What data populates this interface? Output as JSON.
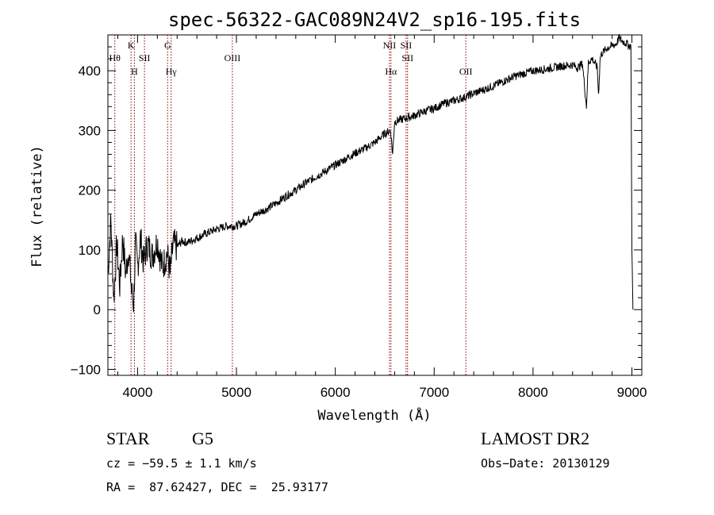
{
  "chart_data": {
    "type": "line",
    "title": "spec-56322-GAC089N24V2_sp16-195.fits",
    "xlabel": "Wavelength (Å)",
    "ylabel": "Flux (relative)",
    "xlim": [
      3700,
      9100
    ],
    "ylim": [
      -110,
      460
    ],
    "x_ticks": [
      4000,
      5000,
      6000,
      7000,
      8000,
      9000
    ],
    "y_ticks": [
      -100,
      0,
      100,
      200,
      300,
      400
    ],
    "x_tick_labels": [
      "4000",
      "5000",
      "6000",
      "7000",
      "8000",
      "9000"
    ],
    "y_tick_labels": [
      "−100",
      "0",
      "100",
      "200",
      "300",
      "400"
    ],
    "grid": false,
    "series": [
      {
        "x": [
          3700,
          3730,
          3760,
          3790,
          3820,
          3850,
          3880,
          3910,
          3940,
          3960,
          3980,
          4000,
          4030,
          4060,
          4100,
          4150,
          4200,
          4250,
          4300,
          4330,
          4360,
          4400,
          4450,
          4500,
          4600,
          4700,
          4800,
          4900,
          5000,
          5100,
          5200,
          5300,
          5400,
          5500,
          5600,
          5700,
          5800,
          5900,
          6000,
          6100,
          6200,
          6300,
          6400,
          6500,
          6560,
          6580,
          6600,
          6700,
          6800,
          6900,
          7000,
          7100,
          7200,
          7300,
          7400,
          7500,
          7600,
          7700,
          7800,
          7900,
          8000,
          8100,
          8200,
          8300,
          8400,
          8450,
          8500,
          8540,
          8560,
          8600,
          8650,
          8662,
          8680,
          8700,
          8750,
          8800,
          8840,
          8870,
          8900,
          8950,
          8990,
          9000,
          9010
        ],
        "y": [
          60,
          150,
          20,
          110,
          40,
          120,
          60,
          100,
          30,
          10,
          110,
          70,
          120,
          80,
          110,
          90,
          115,
          70,
          95,
          60,
          110,
          105,
          115,
          112,
          120,
          128,
          135,
          140,
          140,
          148,
          160,
          168,
          178,
          190,
          200,
          212,
          222,
          232,
          242,
          252,
          262,
          270,
          280,
          295,
          300,
          260,
          315,
          320,
          325,
          332,
          337,
          345,
          350,
          355,
          362,
          368,
          375,
          382,
          390,
          395,
          400,
          402,
          405,
          408,
          410,
          405,
          412,
          340,
          415,
          420,
          405,
          360,
          425,
          430,
          438,
          442,
          445,
          455,
          450,
          445,
          440,
          100,
          0
        ]
      }
    ],
    "emission_lines": [
      {
        "x": 3770,
        "label": "Hθ",
        "row": 2
      },
      {
        "x": 3934,
        "label": "K",
        "row": 1
      },
      {
        "x": 3968,
        "label": "H",
        "row": 3
      },
      {
        "x": 4070,
        "label": "SII",
        "row": 2
      },
      {
        "x": 4304,
        "label": "G",
        "row": 1
      },
      {
        "x": 4340,
        "label": "Hγ",
        "row": 3
      },
      {
        "x": 4959,
        "label": "OIII",
        "row": 2
      },
      {
        "x": 6548,
        "label": "NII",
        "row": 1
      },
      {
        "x": 6563,
        "label": "Hα",
        "row": 3
      },
      {
        "x": 6716,
        "label": "SII",
        "row": 1
      },
      {
        "x": 6731,
        "label": "SII",
        "row": 2
      },
      {
        "x": 7320,
        "label": "OII",
        "row": 3
      }
    ]
  },
  "info": {
    "object_class": "STAR",
    "subclass": "G5",
    "survey": "LAMOST DR2",
    "cz": "cz = −59.5 ± 1.1 km/s",
    "obs_date": "Obs−Date: 20130129",
    "coords": "RA =  87.62427, DEC =  25.93177"
  },
  "colors": {
    "spectrum": "#000000",
    "line_markers": "#8b0000"
  }
}
